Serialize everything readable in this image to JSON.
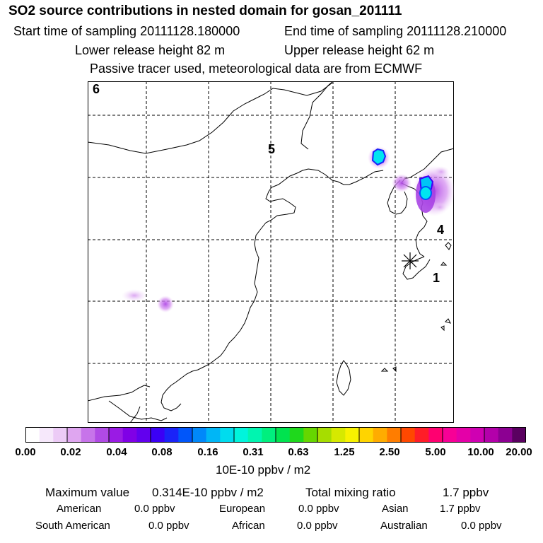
{
  "header": {
    "title": "SO2 source contributions in nested domain for gosan_201111",
    "start_time": "Start time of sampling 20111128.180000",
    "end_time": "End time of sampling 20111128.210000",
    "lower_height": "Lower release height   82 m",
    "upper_height": "Upper release height   62 m",
    "note": "Passive tracer used, meteorological data are from ECMWF"
  },
  "map": {
    "region_labels": [
      "6",
      "5",
      "4",
      "1"
    ],
    "receptor_marker": "asterisk-icon"
  },
  "colorbar": {
    "tick_labels": [
      "0.00",
      "0.02",
      "0.04",
      "0.08",
      "0.16",
      "0.31",
      "0.63",
      "1.25",
      "2.50",
      "5.00",
      "10.00",
      "20.00"
    ],
    "colors": [
      "#ffffff",
      "#f6e8fb",
      "#eccbf6",
      "#dfa6f0",
      "#c774ea",
      "#b04ae5",
      "#9a1be4",
      "#8000e6",
      "#6200ee",
      "#3b00f5",
      "#1a23f8",
      "#0056fa",
      "#0088fa",
      "#00b6f6",
      "#00dcee",
      "#00f4dc",
      "#00f5b0",
      "#00ef7e",
      "#00e34f",
      "#1fd81c",
      "#66d600",
      "#a6dd00",
      "#d6e900",
      "#f8f200",
      "#ffd400",
      "#ffac00",
      "#ff7d00",
      "#ff4800",
      "#ff1d28",
      "#ff0070",
      "#f70096",
      "#e400a8",
      "#cf00b2",
      "#b300aa",
      "#8c0092",
      "#5a0060"
    ],
    "unit": "10E-10 ppbv / m2"
  },
  "footer": {
    "max_label": "Maximum value",
    "max_value": "0.314E-10 ppbv / m2",
    "total_label": "Total mixing ratio",
    "total_value": "1.7 ppbv",
    "sources": [
      {
        "name": "American",
        "value": "0.0 ppbv"
      },
      {
        "name": "European",
        "value": "0.0 ppbv"
      },
      {
        "name": "Asian",
        "value": "1.7 ppbv"
      },
      {
        "name": "South American",
        "value": "0.0 ppbv"
      },
      {
        "name": "African",
        "value": "0.0 ppbv"
      },
      {
        "name": "Australian",
        "value": "0.0 ppbv"
      }
    ]
  }
}
